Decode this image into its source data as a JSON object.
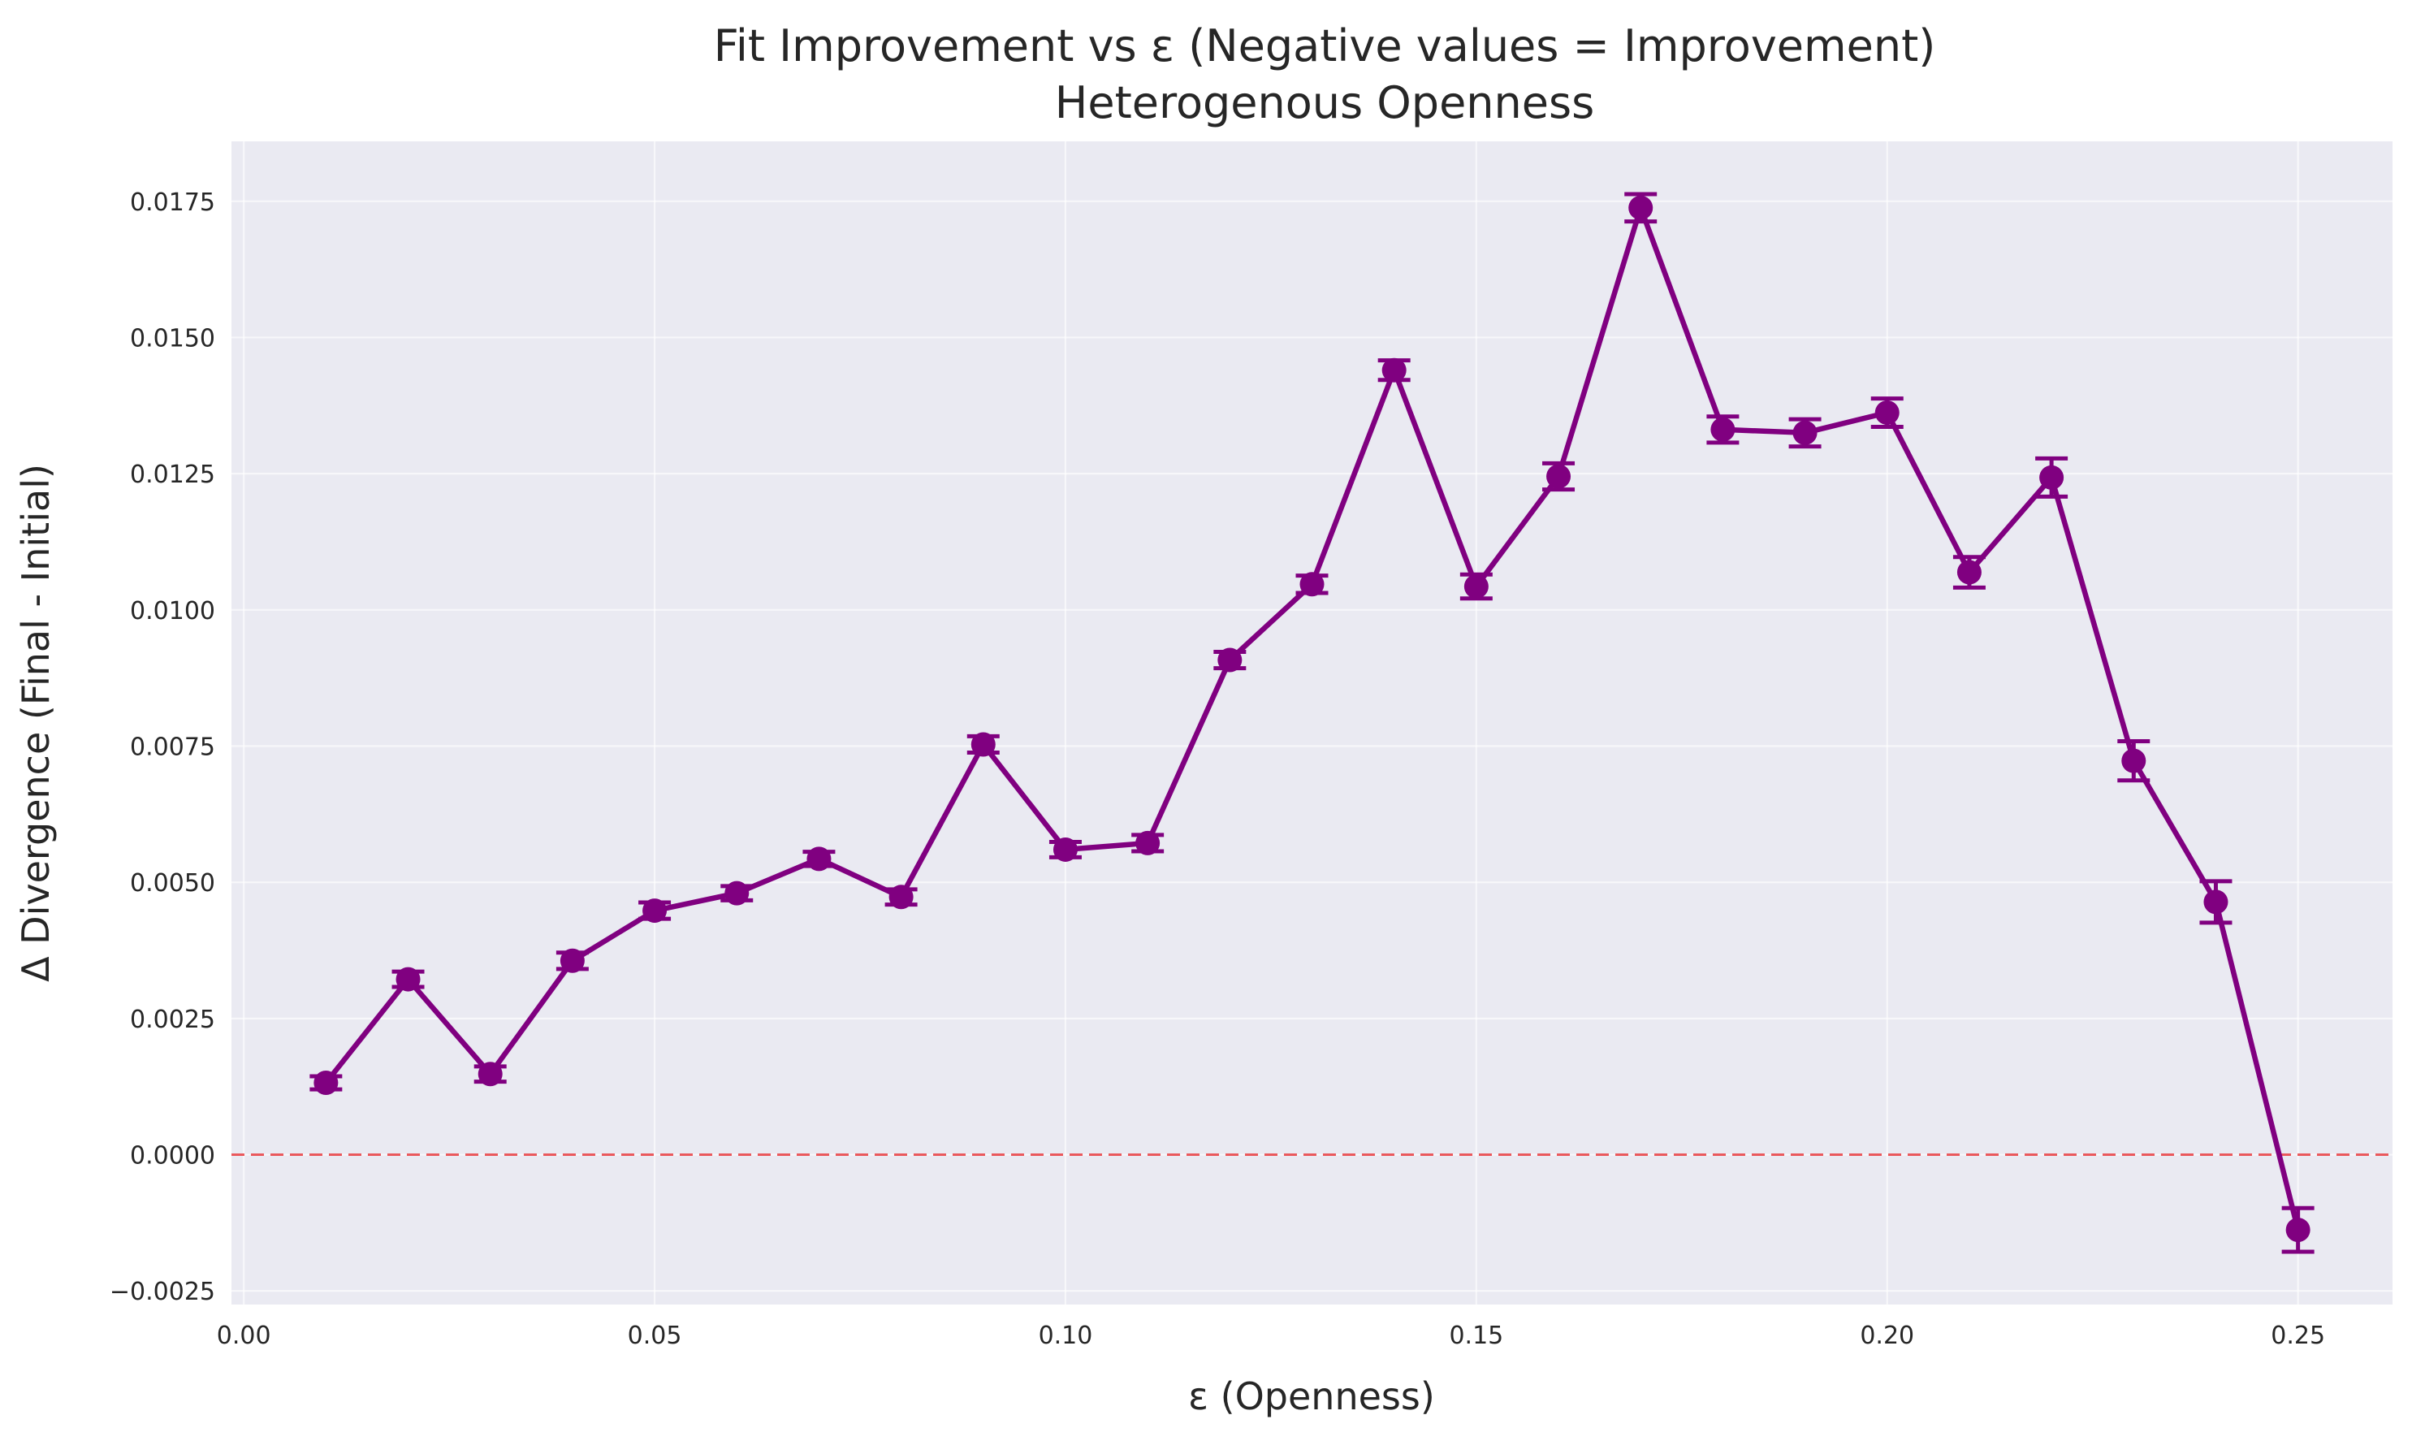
{
  "chart_data": {
    "type": "line",
    "title": "Fit Improvement vs ε (Negative values = Improvement)",
    "subtitle": "Heterogenous Openness",
    "xlabel": "ε (Openness)",
    "ylabel": "Δ Divergence (Final - Initial)",
    "xlim": [
      -0.0015,
      0.2615
    ],
    "ylim": [
      -0.00275,
      0.0186
    ],
    "x_ticks": [
      0.0,
      0.05,
      0.1,
      0.15,
      0.2,
      0.25
    ],
    "x_tick_labels": [
      "0.00",
      "0.05",
      "0.10",
      "0.15",
      "0.20",
      "0.25"
    ],
    "y_ticks": [
      -0.0025,
      0.0,
      0.0025,
      0.005,
      0.0075,
      0.01,
      0.0125,
      0.015,
      0.0175
    ],
    "y_tick_labels": [
      "−0.0025",
      "0.0000",
      "0.0025",
      "0.0050",
      "0.0075",
      "0.0100",
      "0.0125",
      "0.0150",
      "0.0175"
    ],
    "grid": true,
    "reference_line": {
      "y": 0.0,
      "style": "dashed",
      "color": "#e8474a"
    },
    "series": [
      {
        "color": "#800080",
        "x": [
          0.01,
          0.02,
          0.03,
          0.04,
          0.05,
          0.06,
          0.07,
          0.08,
          0.09,
          0.1,
          0.11,
          0.12,
          0.13,
          0.14,
          0.15,
          0.16,
          0.17,
          0.18,
          0.19,
          0.2,
          0.21,
          0.22,
          0.23,
          0.24,
          0.25
        ],
        "y": [
          0.00132,
          0.00322,
          0.00148,
          0.00356,
          0.00448,
          0.0048,
          0.00543,
          0.00473,
          0.00753,
          0.0056,
          0.00572,
          0.00908,
          0.01047,
          0.0144,
          0.01043,
          0.01245,
          0.01738,
          0.01331,
          0.01325,
          0.01362,
          0.01069,
          0.01243,
          0.00723,
          0.00464,
          -0.00138
        ],
        "err": [
          0.00012,
          0.00014,
          0.00014,
          0.00015,
          0.00015,
          0.00013,
          0.00013,
          0.00014,
          0.00015,
          0.00014,
          0.00015,
          0.00015,
          0.00016,
          0.00018,
          0.00022,
          0.00024,
          0.00025,
          0.00024,
          0.00025,
          0.00026,
          0.00028,
          0.00035,
          0.00036,
          0.00038,
          0.0004
        ]
      }
    ]
  }
}
